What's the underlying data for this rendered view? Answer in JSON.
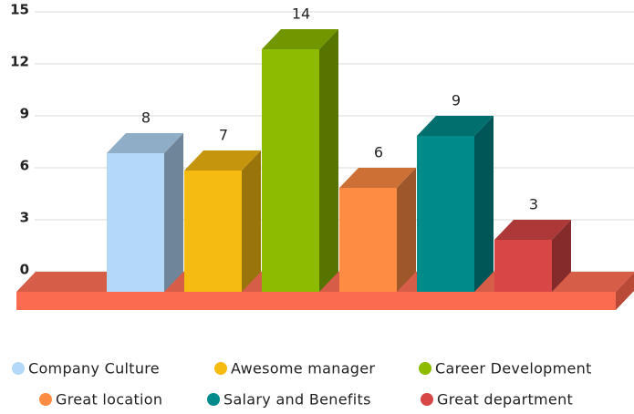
{
  "chart_data": {
    "type": "bar3d",
    "categories": [
      "Company Culture",
      "Awesome manager",
      "Career Development",
      "Great location",
      "Salary and Benefits",
      "Great department"
    ],
    "values": [
      8,
      7,
      14,
      6,
      9,
      3
    ],
    "colors": [
      "#b3d8f8",
      "#f6bb10",
      "#8dbb00",
      "#ff8c43",
      "#008b8a",
      "#d84646"
    ],
    "ylim": [
      0,
      15
    ],
    "yticks": [
      0,
      3,
      6,
      9,
      12,
      15
    ],
    "grid": true,
    "legend": "bottom"
  }
}
